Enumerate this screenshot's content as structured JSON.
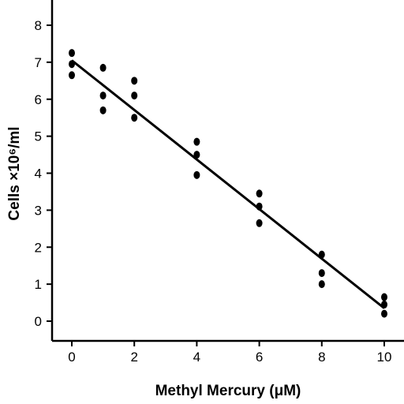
{
  "chart_data": {
    "type": "scatter",
    "title": "",
    "xlabel": "Methyl Mercury (μM)",
    "ylabel": "Cells ×10⁶/ml",
    "xlim": [
      0,
      10
    ],
    "ylim": [
      0,
      8
    ],
    "x_ticks": [
      "0",
      "2",
      "4",
      "6",
      "8",
      "10"
    ],
    "y_ticks": [
      "0",
      "1",
      "2",
      "3",
      "4",
      "5",
      "6",
      "7",
      "8"
    ],
    "grid": false,
    "legend": "none",
    "series": [
      {
        "points": [
          {
            "x": 0,
            "y": 7.25
          },
          {
            "x": 0,
            "y": 6.95
          },
          {
            "x": 0,
            "y": 6.65
          },
          {
            "x": 1,
            "y": 6.85
          },
          {
            "x": 1,
            "y": 6.1
          },
          {
            "x": 1,
            "y": 5.7
          },
          {
            "x": 2,
            "y": 6.5
          },
          {
            "x": 2,
            "y": 6.1
          },
          {
            "x": 2,
            "y": 5.5
          },
          {
            "x": 4,
            "y": 4.85
          },
          {
            "x": 4,
            "y": 4.5
          },
          {
            "x": 4,
            "y": 3.95
          },
          {
            "x": 6,
            "y": 3.45
          },
          {
            "x": 6,
            "y": 3.1
          },
          {
            "x": 6,
            "y": 2.65
          },
          {
            "x": 8,
            "y": 1.8
          },
          {
            "x": 8,
            "y": 1.3
          },
          {
            "x": 8,
            "y": 1.0
          },
          {
            "x": 10,
            "y": 0.65
          },
          {
            "x": 10,
            "y": 0.45
          },
          {
            "x": 10,
            "y": 0.2
          }
        ],
        "color": "#000000"
      }
    ],
    "trend_line": {
      "x": [
        0,
        10
      ],
      "y": [
        7.05,
        0.35
      ],
      "color": "#000000"
    }
  }
}
